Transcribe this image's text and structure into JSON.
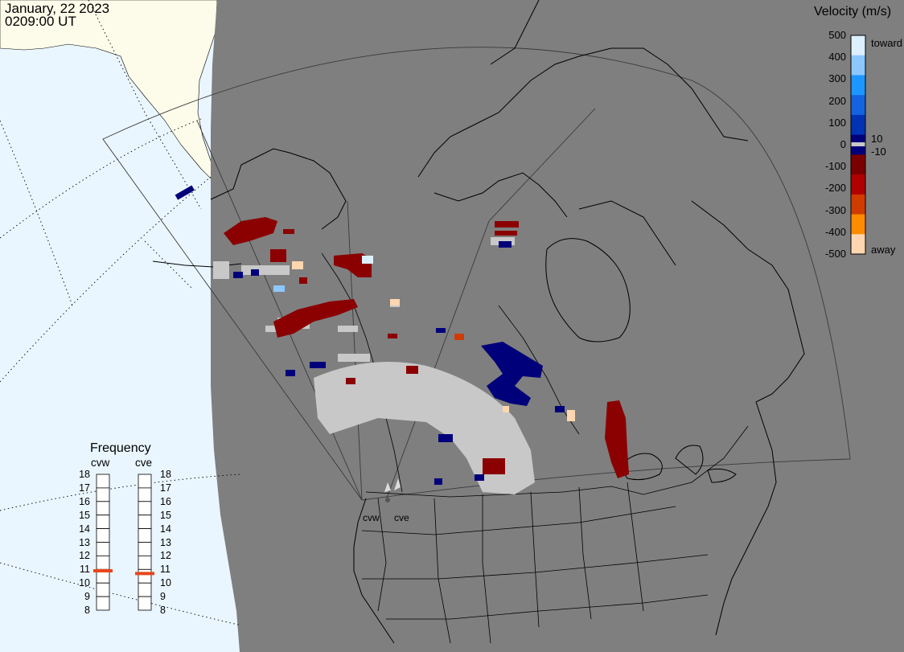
{
  "header": {
    "date": "January, 22 2023",
    "time": "0209:00 UT"
  },
  "legend": {
    "title": "Velocity (m/s)",
    "ticks": [
      "500",
      "400",
      "300",
      "200",
      "100",
      "0",
      "-100",
      "-200",
      "-300",
      "-400",
      "-500"
    ],
    "toward_label": "toward",
    "away_label": "away",
    "pos_threshold": "10",
    "neg_threshold": "-10",
    "colors": [
      "#ffd6b0",
      "#ff8c00",
      "#d03c00",
      "#b00000",
      "#7a0000",
      "#00007a",
      "#0032b4",
      "#1464e0",
      "#1e96ff",
      "#8cc8ff",
      "#dcf0ff"
    ],
    "ground_scatter_color": "#c8c8c8"
  },
  "frequency": {
    "title": "Frequency",
    "levels": [
      "18",
      "17",
      "16",
      "15",
      "14",
      "13",
      "12",
      "11",
      "10",
      "9",
      "8"
    ],
    "stations": [
      {
        "id": "cvw",
        "label": "cvw",
        "value_mhz": 10.9
      },
      {
        "id": "cve",
        "label": "cve",
        "value_mhz": 10.7
      }
    ],
    "marker_color": "#e8461c"
  },
  "map": {
    "night_color": "#7f7f7f",
    "ocean_color": "#eaf6ff",
    "land_color": "#fdfbea",
    "station_labels": [
      "cvw",
      "cve"
    ]
  }
}
